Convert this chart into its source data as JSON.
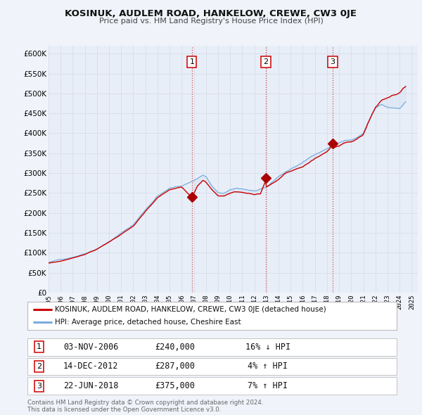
{
  "title": "KOSINUK, AUDLEM ROAD, HANKELOW, CREWE, CW3 0JE",
  "subtitle": "Price paid vs. HM Land Registry's House Price Index (HPI)",
  "bg_color": "#f0f4fa",
  "plot_bg_color": "#e8eef8",
  "grid_color": "#d8e0ec",
  "red_line_color": "#cc0000",
  "blue_line_color": "#7aaddc",
  "fill_color": "#c8daf0",
  "sale_marker_color": "#aa0000",
  "vline_color": "#cc3333",
  "ylim_min": 0,
  "ylim_max": 620000,
  "yticks": [
    0,
    50000,
    100000,
    150000,
    200000,
    250000,
    300000,
    350000,
    400000,
    450000,
    500000,
    550000,
    600000
  ],
  "ytick_labels": [
    "£0",
    "£50K",
    "£100K",
    "£150K",
    "£200K",
    "£250K",
    "£300K",
    "£350K",
    "£400K",
    "£450K",
    "£500K",
    "£550K",
    "£600K"
  ],
  "xlim_min": 1995.0,
  "xlim_max": 2025.5,
  "sale_dates": [
    2006.843,
    2012.956,
    2018.472
  ],
  "sale_prices": [
    240000,
    287000,
    375000
  ],
  "sale_labels": [
    "1",
    "2",
    "3"
  ],
  "sale_date_strings": [
    "03-NOV-2006",
    "14-DEC-2012",
    "22-JUN-2018"
  ],
  "sale_price_strings": [
    "£240,000",
    "£287,000",
    "£375,000"
  ],
  "sale_hpi_strings": [
    "16% ↓ HPI",
    "4% ↑ HPI",
    "7% ↑ HPI"
  ],
  "legend_label_red": "KOSINUK, AUDLEM ROAD, HANKELOW, CREWE, CW3 0JE (detached house)",
  "legend_label_blue": "HPI: Average price, detached house, Cheshire East",
  "footer_text": "Contains HM Land Registry data © Crown copyright and database right 2024.\nThis data is licensed under the Open Government Licence v3.0."
}
